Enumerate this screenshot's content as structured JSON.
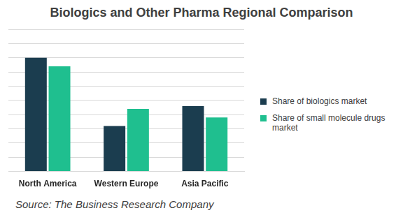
{
  "chart_data": {
    "type": "bar",
    "title": "Biologics and Other Pharma Regional Comparison",
    "categories": [
      "North America",
      "Western Europe",
      "Asia Pacific"
    ],
    "series": [
      {
        "name": "Share of biologics market",
        "color": "#1b3d4f",
        "values": [
          40,
          16,
          23
        ]
      },
      {
        "name": "Share of small molecule drugs market",
        "color": "#1fbf8f",
        "values": [
          37,
          22,
          19
        ]
      }
    ],
    "ylim": [
      0,
      50
    ],
    "yticks": [
      0,
      5,
      10,
      15,
      20,
      25,
      30,
      35,
      40,
      45,
      50
    ],
    "grid": true,
    "tick_labels": "x",
    "legend": "right",
    "annotations": [
      "Source: The Business Research Company"
    ]
  }
}
